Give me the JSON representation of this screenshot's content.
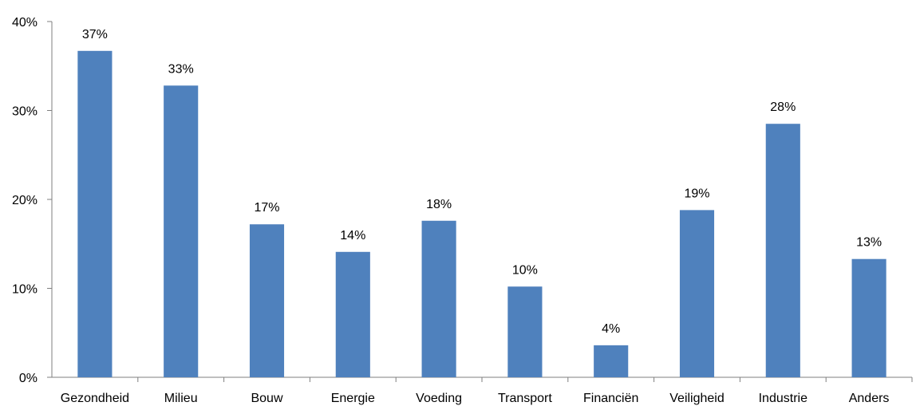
{
  "chart_data": {
    "type": "bar",
    "title": "",
    "xlabel": "",
    "ylabel": "",
    "categories": [
      "Gezondheid",
      "Milieu",
      "Bouw",
      "Energie",
      "Voeding",
      "Transport",
      "Financiën",
      "Veiligheid",
      "Industrie",
      "Anders"
    ],
    "values": [
      36.7,
      32.8,
      17.2,
      14.1,
      17.6,
      10.2,
      3.6,
      18.8,
      28.5,
      13.3
    ],
    "data_labels": [
      "37%",
      "33%",
      "17%",
      "14%",
      "18%",
      "10%",
      "4%",
      "19%",
      "28%",
      "13%"
    ],
    "ylim": [
      0,
      40
    ],
    "y_ticks": [
      0,
      10,
      20,
      30,
      40
    ],
    "y_tick_labels": [
      "0%",
      "10%",
      "20%",
      "30%",
      "40%"
    ],
    "grid": false,
    "legend": "none",
    "colors": {
      "bar": "#4F81BD",
      "axis": "#7f7f7f"
    }
  }
}
